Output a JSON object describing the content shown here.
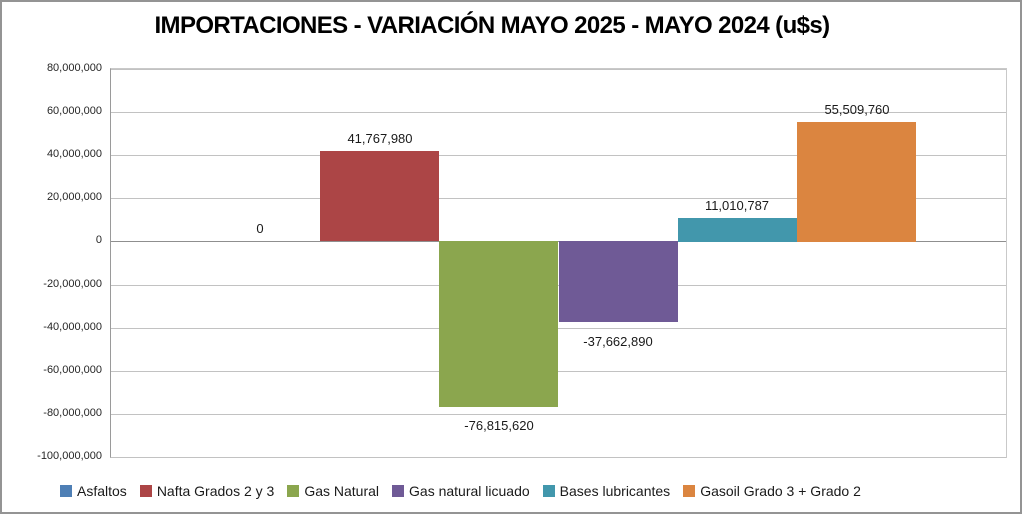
{
  "chart_data": {
    "type": "bar",
    "title": "IMPORTACIONES - VARIACIÓN MAYO 2025 - MAYO 2024 (u$s)",
    "categories": [
      "Asfaltos",
      "Nafta Grados 2 y 3",
      "Gas Natural",
      "Gas natural licuado",
      "Bases lubricantes",
      "Gasoil Grado 3 + Grado 2"
    ],
    "series": [
      {
        "name": "Asfaltos",
        "value": 0,
        "label": "0",
        "color": "#4E7FB5"
      },
      {
        "name": "Nafta Grados 2 y 3",
        "value": 41767980,
        "label": "41,767,980",
        "color": "#AC4546"
      },
      {
        "name": "Gas Natural",
        "value": -76815620,
        "label": "-76,815,620",
        "color": "#8BA64E"
      },
      {
        "name": "Gas natural licuado",
        "value": -37662890,
        "label": "-37,662,890",
        "color": "#6F5A96"
      },
      {
        "name": "Bases lubricantes",
        "value": 11010787,
        "label": "11,010,787",
        "color": "#4297AC"
      },
      {
        "name": "Gasoil Grado 3 + Grado 2",
        "value": 55509760,
        "label": "55,509,760",
        "color": "#DB8540"
      }
    ],
    "xlabel": "",
    "ylabel": "",
    "ylim": [
      -100000000,
      80000000
    ],
    "y_tick_interval": 20000000,
    "y_tick_labels": [
      "80,000,000",
      "60,000,000",
      "40,000,000",
      "20,000,000",
      "0",
      "-20,000,000",
      "-40,000,000",
      "-60,000,000",
      "-80,000,000",
      "-100,000,000"
    ],
    "grid": true,
    "legend_position": "bottom",
    "bar_gap_percent": 150
  },
  "colors": {
    "background": "#FFFFFF",
    "chart_border": "#949494",
    "gridline": "#C2C2C2",
    "zero_axis_line": "#8F8F8F",
    "text": "#1A1A1A"
  }
}
